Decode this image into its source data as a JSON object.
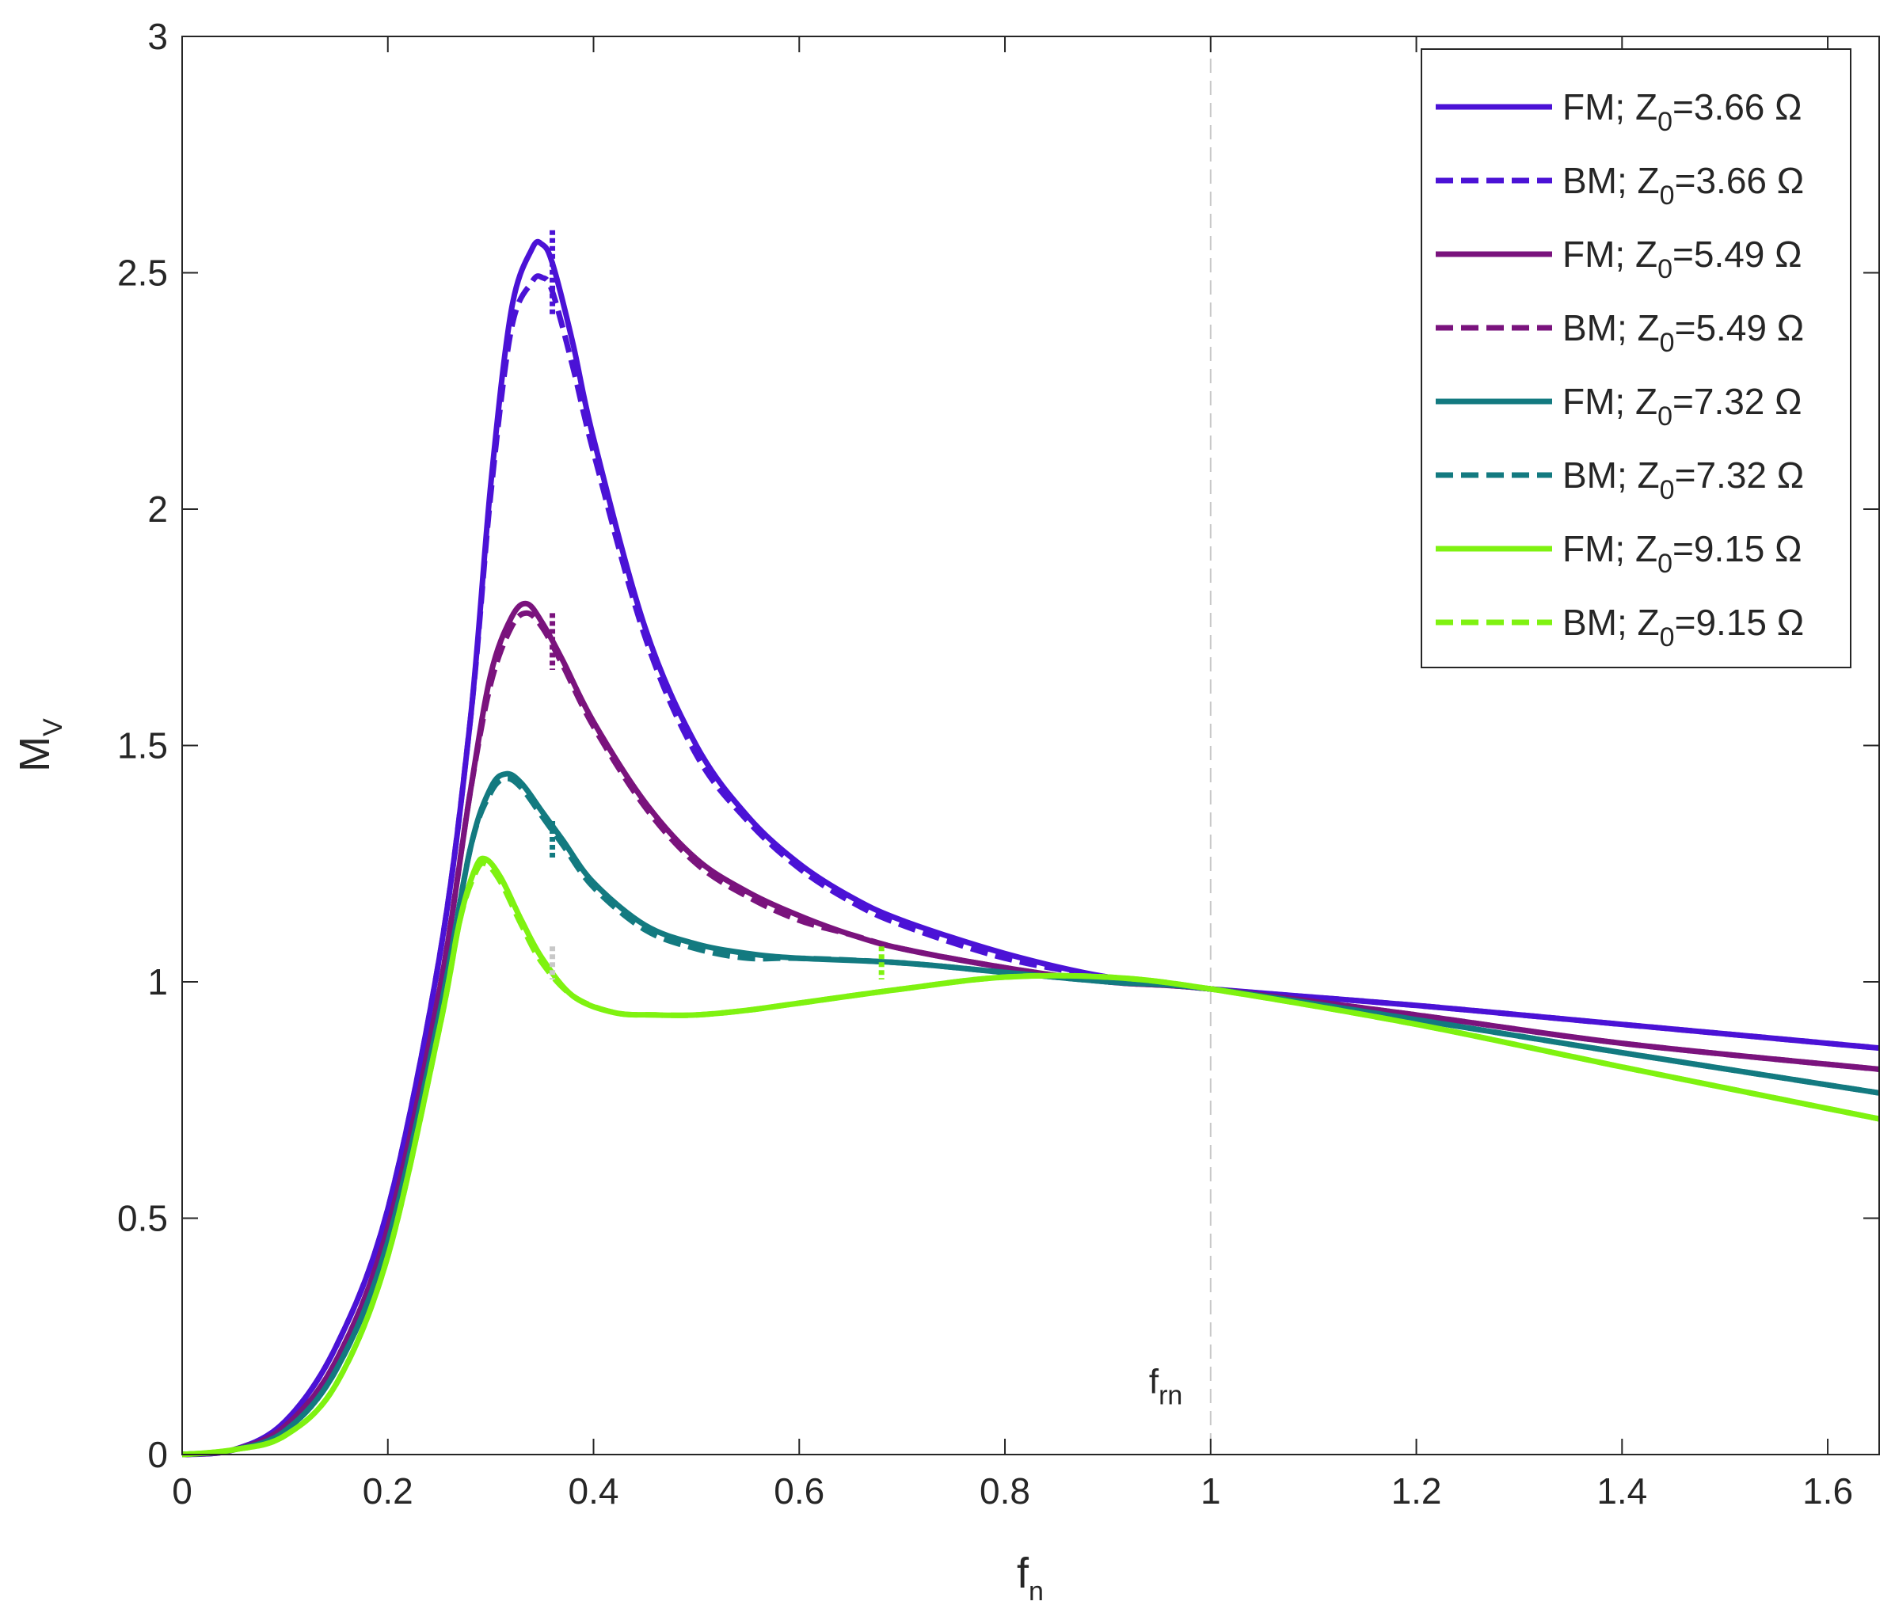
{
  "chart_data": {
    "type": "line",
    "xlabel": "f",
    "xlabel_sub": "n",
    "ylabel": "M",
    "ylabel_sub": "V",
    "xlim": [
      0,
      1.65
    ],
    "ylim": [
      0,
      3
    ],
    "x_ticks": [
      0,
      0.2,
      0.4,
      0.6,
      0.8,
      1,
      1.2,
      1.4,
      1.6
    ],
    "x_tick_labels": [
      "0",
      "0.2",
      "0.4",
      "0.6",
      "0.8",
      "1",
      "1.2",
      "1.4",
      "1.6"
    ],
    "y_ticks": [
      0,
      0.5,
      1,
      1.5,
      2,
      2.5,
      3
    ],
    "y_tick_labels": [
      "0",
      "0.5",
      "1",
      "1.5",
      "2",
      "2.5",
      "3"
    ],
    "grid": false,
    "legend_position": "top-right",
    "reference_line": {
      "x": 1,
      "style": "dashed",
      "color": "#c8c8c8"
    },
    "annotation": {
      "text": "f",
      "sub": "rn",
      "x": 0.94,
      "y": 0.13
    },
    "series": [
      {
        "legend_label": {
          "prefix": "FM; Z",
          "sub": "0",
          "suffix": "=3.66 Ω"
        },
        "color": "#4b12d6",
        "dash": "solid",
        "width": 7,
        "x": [
          0,
          0.05,
          0.1,
          0.15,
          0.2,
          0.25,
          0.28,
          0.3,
          0.32,
          0.34,
          0.35,
          0.36,
          0.38,
          0.4,
          0.45,
          0.5,
          0.55,
          0.6,
          0.65,
          0.7,
          0.8,
          0.9,
          1.0,
          1.2,
          1.4,
          1.65
        ],
        "y": [
          0,
          0.01,
          0.07,
          0.23,
          0.52,
          1.05,
          1.55,
          2.05,
          2.42,
          2.55,
          2.56,
          2.52,
          2.35,
          2.15,
          1.75,
          1.5,
          1.35,
          1.25,
          1.18,
          1.13,
          1.06,
          1.01,
          0.985,
          0.95,
          0.91,
          0.86
        ]
      },
      {
        "legend_label": {
          "prefix": "BM; Z",
          "sub": "0",
          "suffix": "=3.66 Ω"
        },
        "color": "#4b12d6",
        "dash": "dashed",
        "width": 7,
        "x": [
          0,
          0.05,
          0.1,
          0.15,
          0.2,
          0.25,
          0.28,
          0.3,
          0.32,
          0.34,
          0.35,
          0.36,
          0.38,
          0.4,
          0.45,
          0.5,
          0.55,
          0.6,
          0.65,
          0.7,
          0.8,
          0.9,
          1.0,
          1.2,
          1.4,
          1.65
        ],
        "y": [
          0,
          0.01,
          0.07,
          0.23,
          0.52,
          1.05,
          1.55,
          2.03,
          2.38,
          2.48,
          2.49,
          2.46,
          2.3,
          2.12,
          1.73,
          1.48,
          1.34,
          1.24,
          1.17,
          1.12,
          1.05,
          1.01,
          0.985,
          0.95,
          0.91,
          0.86
        ]
      },
      {
        "legend_label": {
          "prefix": "FM; Z",
          "sub": "0",
          "suffix": "=5.49 Ω"
        },
        "color": "#7a137d",
        "dash": "solid",
        "width": 7,
        "x": [
          0,
          0.05,
          0.1,
          0.15,
          0.2,
          0.25,
          0.28,
          0.3,
          0.32,
          0.335,
          0.35,
          0.37,
          0.4,
          0.45,
          0.5,
          0.55,
          0.6,
          0.65,
          0.7,
          0.8,
          0.9,
          1.0,
          1.2,
          1.4,
          1.65
        ],
        "y": [
          0,
          0.01,
          0.06,
          0.2,
          0.48,
          0.98,
          1.4,
          1.65,
          1.77,
          1.8,
          1.76,
          1.68,
          1.55,
          1.38,
          1.26,
          1.19,
          1.14,
          1.1,
          1.07,
          1.03,
          1.0,
          0.985,
          0.93,
          0.87,
          0.815
        ]
      },
      {
        "legend_label": {
          "prefix": "BM; Z",
          "sub": "0",
          "suffix": "=5.49 Ω"
        },
        "color": "#7a137d",
        "dash": "dashed",
        "width": 7,
        "x": [
          0,
          0.05,
          0.1,
          0.15,
          0.2,
          0.25,
          0.28,
          0.3,
          0.32,
          0.335,
          0.35,
          0.37,
          0.4,
          0.45,
          0.5,
          0.55,
          0.6,
          0.65,
          0.7,
          0.8,
          0.9,
          1.0,
          1.2,
          1.4,
          1.65
        ],
        "y": [
          0,
          0.01,
          0.06,
          0.2,
          0.48,
          0.98,
          1.4,
          1.63,
          1.75,
          1.78,
          1.75,
          1.67,
          1.54,
          1.37,
          1.25,
          1.18,
          1.13,
          1.1,
          1.07,
          1.03,
          1.0,
          0.985,
          0.93,
          0.87,
          0.815
        ]
      },
      {
        "legend_label": {
          "prefix": "FM; Z",
          "sub": "0",
          "suffix": "=7.32 Ω"
        },
        "color": "#137a80",
        "dash": "solid",
        "width": 7,
        "x": [
          0,
          0.05,
          0.1,
          0.15,
          0.2,
          0.25,
          0.28,
          0.3,
          0.315,
          0.33,
          0.35,
          0.37,
          0.4,
          0.45,
          0.5,
          0.55,
          0.6,
          0.7,
          0.8,
          0.9,
          1.0,
          1.2,
          1.4,
          1.65
        ],
        "y": [
          0,
          0.01,
          0.05,
          0.18,
          0.45,
          0.93,
          1.28,
          1.41,
          1.44,
          1.42,
          1.36,
          1.3,
          1.21,
          1.12,
          1.08,
          1.06,
          1.05,
          1.04,
          1.02,
          1.0,
          0.985,
          0.92,
          0.85,
          0.765
        ]
      },
      {
        "legend_label": {
          "prefix": "BM; Z",
          "sub": "0",
          "suffix": "=7.32 Ω"
        },
        "color": "#137a80",
        "dash": "dashed",
        "width": 7,
        "x": [
          0,
          0.05,
          0.1,
          0.15,
          0.2,
          0.25,
          0.28,
          0.3,
          0.315,
          0.33,
          0.35,
          0.37,
          0.4,
          0.45,
          0.5,
          0.55,
          0.6,
          0.7,
          0.8,
          0.9,
          1.0,
          1.2,
          1.4,
          1.65
        ],
        "y": [
          0,
          0.01,
          0.05,
          0.18,
          0.45,
          0.93,
          1.28,
          1.4,
          1.43,
          1.41,
          1.35,
          1.29,
          1.2,
          1.11,
          1.07,
          1.05,
          1.05,
          1.04,
          1.02,
          1.0,
          0.985,
          0.92,
          0.85,
          0.765
        ]
      },
      {
        "legend_label": {
          "prefix": "FM; Z",
          "sub": "0",
          "suffix": "=9.15 Ω"
        },
        "color": "#7ff210",
        "dash": "solid",
        "width": 7,
        "x": [
          0,
          0.05,
          0.1,
          0.15,
          0.2,
          0.25,
          0.27,
          0.285,
          0.295,
          0.31,
          0.33,
          0.35,
          0.38,
          0.42,
          0.46,
          0.5,
          0.55,
          0.6,
          0.7,
          0.8,
          0.9,
          1.0,
          1.2,
          1.4,
          1.65
        ],
        "y": [
          0,
          0.01,
          0.04,
          0.15,
          0.42,
          0.9,
          1.13,
          1.24,
          1.26,
          1.22,
          1.13,
          1.05,
          0.97,
          0.935,
          0.93,
          0.93,
          0.94,
          0.955,
          0.985,
          1.01,
          1.01,
          0.985,
          0.91,
          0.82,
          0.71
        ]
      },
      {
        "legend_label": {
          "prefix": "BM; Z",
          "sub": "0",
          "suffix": "=9.15 Ω"
        },
        "color": "#7ff210",
        "dash": "dashed",
        "width": 7,
        "x": [
          0,
          0.05,
          0.1,
          0.15,
          0.2,
          0.25,
          0.27,
          0.285,
          0.295,
          0.31,
          0.33,
          0.35,
          0.38,
          0.42,
          0.46,
          0.5,
          0.55,
          0.6,
          0.7,
          0.8,
          0.9,
          1.0,
          1.2,
          1.4,
          1.65
        ],
        "y": [
          0,
          0.01,
          0.04,
          0.15,
          0.42,
          0.9,
          1.13,
          1.23,
          1.25,
          1.21,
          1.12,
          1.04,
          0.97,
          0.935,
          0.93,
          0.93,
          0.94,
          0.955,
          0.985,
          1.01,
          1.01,
          0.985,
          0.91,
          0.82,
          0.71
        ]
      }
    ],
    "markers": [
      {
        "x": 0.36,
        "y": 2.5,
        "half_height": 0.09,
        "color": "#4b12d6"
      },
      {
        "x": 0.36,
        "y": 1.72,
        "half_height": 0.06,
        "color": "#7a137d"
      },
      {
        "x": 0.36,
        "y": 1.3,
        "half_height": 0.04,
        "color": "#137a80"
      },
      {
        "x": 0.36,
        "y": 1.04,
        "half_height": 0.035,
        "color": "#c8c8c8"
      },
      {
        "x": 0.68,
        "y": 1.04,
        "half_height": 0.035,
        "color": "#7ff210"
      }
    ]
  }
}
